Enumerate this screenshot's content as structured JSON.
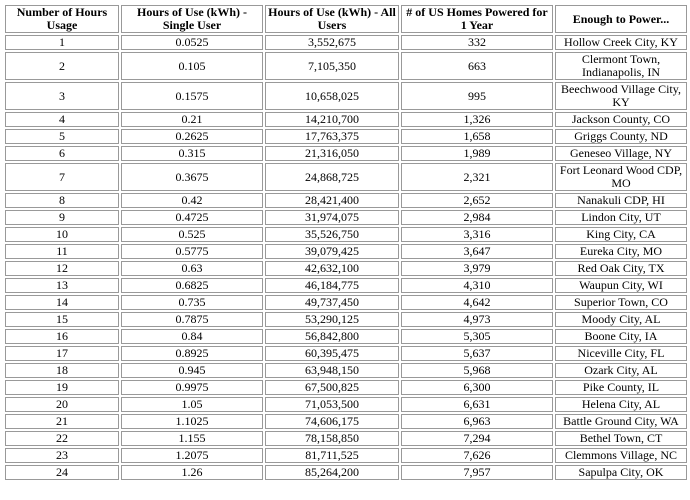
{
  "table": {
    "headers": [
      "Number of Hours Usage",
      "Hours of Use (kWh) - Single User",
      "Hours of Use (kWh) - All Users",
      "# of US Homes Powered for 1 Year",
      "Enough to Power..."
    ],
    "rows": [
      [
        "1",
        "0.0525",
        "3,552,675",
        "332",
        "Hollow Creek City, KY"
      ],
      [
        "2",
        "0.105",
        "7,105,350",
        "663",
        "Clermont Town, Indianapolis, IN"
      ],
      [
        "3",
        "0.1575",
        "10,658,025",
        "995",
        "Beechwood Village City, KY"
      ],
      [
        "4",
        "0.21",
        "14,210,700",
        "1,326",
        "Jackson County, CO"
      ],
      [
        "5",
        "0.2625",
        "17,763,375",
        "1,658",
        "Griggs County, ND"
      ],
      [
        "6",
        "0.315",
        "21,316,050",
        "1,989",
        "Geneseo Village, NY"
      ],
      [
        "7",
        "0.3675",
        "24,868,725",
        "2,321",
        "Fort Leonard Wood CDP, MO"
      ],
      [
        "8",
        "0.42",
        "28,421,400",
        "2,652",
        "Nanakuli CDP, HI"
      ],
      [
        "9",
        "0.4725",
        "31,974,075",
        "2,984",
        "Lindon City, UT"
      ],
      [
        "10",
        "0.525",
        "35,526,750",
        "3,316",
        "King City, CA"
      ],
      [
        "11",
        "0.5775",
        "39,079,425",
        "3,647",
        "Eureka City, MO"
      ],
      [
        "12",
        "0.63",
        "42,632,100",
        "3,979",
        "Red Oak City, TX"
      ],
      [
        "13",
        "0.6825",
        "46,184,775",
        "4,310",
        "Waupun City, WI"
      ],
      [
        "14",
        "0.735",
        "49,737,450",
        "4,642",
        "Superior Town, CO"
      ],
      [
        "15",
        "0.7875",
        "53,290,125",
        "4,973",
        "Moody City, AL"
      ],
      [
        "16",
        "0.84",
        "56,842,800",
        "5,305",
        "Boone City, IA"
      ],
      [
        "17",
        "0.8925",
        "60,395,475",
        "5,637",
        "Niceville City, FL"
      ],
      [
        "18",
        "0.945",
        "63,948,150",
        "5,968",
        "Ozark City, AL"
      ],
      [
        "19",
        "0.9975",
        "67,500,825",
        "6,300",
        "Pike County, IL"
      ],
      [
        "20",
        "1.05",
        "71,053,500",
        "6,631",
        "Helena City, AL"
      ],
      [
        "21",
        "1.1025",
        "74,606,175",
        "6,963",
        "Battle Ground City, WA"
      ],
      [
        "22",
        "1.155",
        "78,158,850",
        "7,294",
        "Bethel Town, CT"
      ],
      [
        "23",
        "1.2075",
        "81,711,525",
        "7,626",
        "Clemmons Village, NC"
      ],
      [
        "24",
        "1.26",
        "85,264,200",
        "7,957",
        "Sapulpa City, OK"
      ]
    ]
  }
}
